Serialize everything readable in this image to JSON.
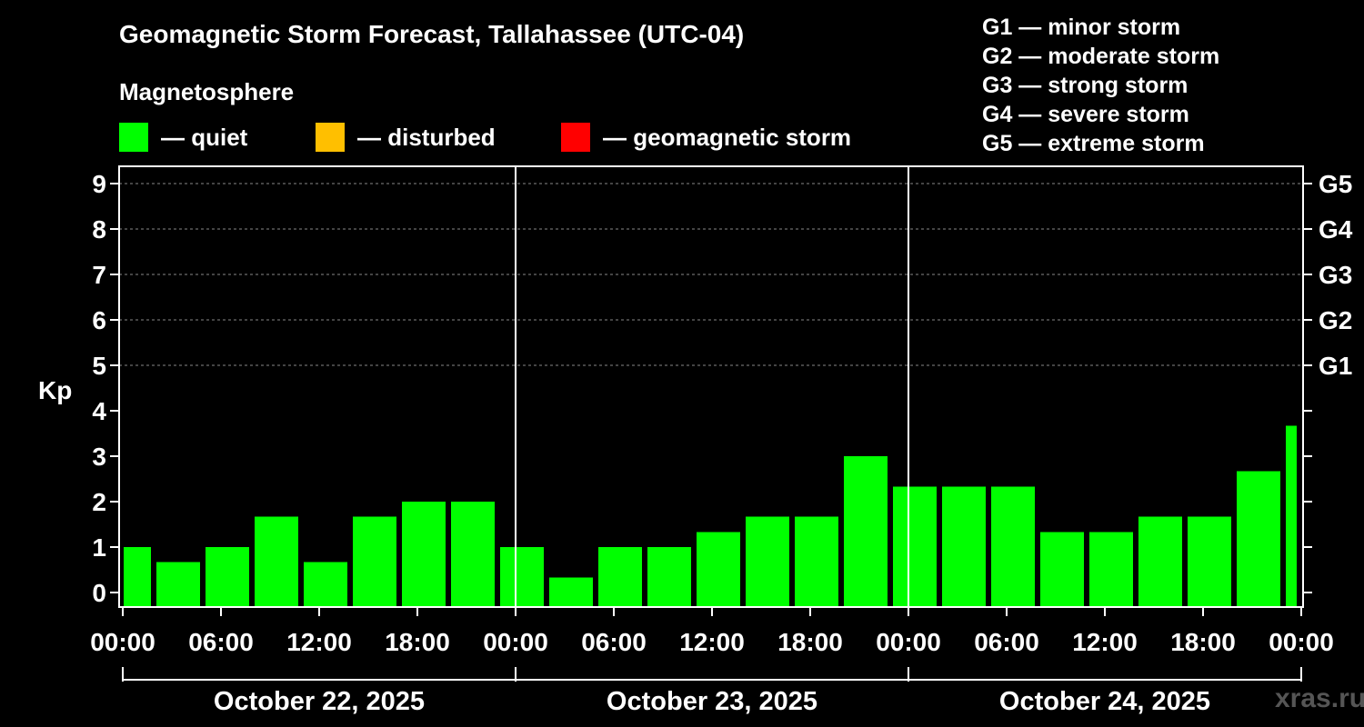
{
  "title": "Geomagnetic Storm Forecast, Tallahassee (UTC-04)",
  "magnetosphere_label": "Magnetosphere",
  "legend": [
    {
      "label": "— quiet",
      "color": "#00ff00"
    },
    {
      "label": "— disturbed",
      "color": "#ffbf00"
    },
    {
      "label": "— geomagnetic storm",
      "color": "#ff0000"
    }
  ],
  "g_scale": [
    "G1 — minor storm",
    "G2 — moderate storm",
    "G3 — strong storm",
    "G4 — severe storm",
    "G5 — extreme storm"
  ],
  "watermark": "xras.ru",
  "chart_data": {
    "type": "bar",
    "ylabel": "Kp",
    "ylim": [
      0,
      9
    ],
    "y_ticks": [
      "0",
      "1",
      "2",
      "3",
      "4",
      "5",
      "6",
      "7",
      "8",
      "9"
    ],
    "right_axis_labels": [
      {
        "kp": 5,
        "label": "G1"
      },
      {
        "kp": 6,
        "label": "G2"
      },
      {
        "kp": 7,
        "label": "G3"
      },
      {
        "kp": 8,
        "label": "G4"
      },
      {
        "kp": 9,
        "label": "G5"
      }
    ],
    "gridlines_at": [
      5,
      6,
      7,
      8,
      9
    ],
    "x_hours": [
      0,
      72
    ],
    "x_ticks": [
      "00:00",
      "06:00",
      "12:00",
      "18:00",
      "00:00",
      "06:00",
      "12:00",
      "18:00",
      "00:00",
      "06:00",
      "12:00",
      "18:00",
      "00:00"
    ],
    "days": [
      "October 22, 2025",
      "October 23, 2025",
      "October 24, 2025"
    ],
    "bars": [
      {
        "start": 0,
        "end": 2,
        "kp": 1.0
      },
      {
        "start": 2,
        "end": 5,
        "kp": 0.67
      },
      {
        "start": 5,
        "end": 8,
        "kp": 1.0
      },
      {
        "start": 8,
        "end": 11,
        "kp": 1.67
      },
      {
        "start": 11,
        "end": 14,
        "kp": 0.67
      },
      {
        "start": 14,
        "end": 17,
        "kp": 1.67
      },
      {
        "start": 17,
        "end": 20,
        "kp": 2.0
      },
      {
        "start": 20,
        "end": 23,
        "kp": 2.0
      },
      {
        "start": 23,
        "end": 26,
        "kp": 1.0
      },
      {
        "start": 26,
        "end": 29,
        "kp": 0.33
      },
      {
        "start": 29,
        "end": 32,
        "kp": 1.0
      },
      {
        "start": 32,
        "end": 35,
        "kp": 1.0
      },
      {
        "start": 35,
        "end": 38,
        "kp": 1.33
      },
      {
        "start": 38,
        "end": 41,
        "kp": 1.67
      },
      {
        "start": 41,
        "end": 44,
        "kp": 1.67
      },
      {
        "start": 44,
        "end": 47,
        "kp": 3.0
      },
      {
        "start": 47,
        "end": 50,
        "kp": 2.33
      },
      {
        "start": 50,
        "end": 53,
        "kp": 2.33
      },
      {
        "start": 53,
        "end": 56,
        "kp": 2.33
      },
      {
        "start": 56,
        "end": 59,
        "kp": 1.33
      },
      {
        "start": 59,
        "end": 62,
        "kp": 1.33
      },
      {
        "start": 62,
        "end": 65,
        "kp": 1.67
      },
      {
        "start": 65,
        "end": 68,
        "kp": 1.67
      },
      {
        "start": 68,
        "end": 71,
        "kp": 2.67
      },
      {
        "start": 71,
        "end": 72,
        "kp": 3.67
      }
    ],
    "bar_color": "#00ff00"
  }
}
